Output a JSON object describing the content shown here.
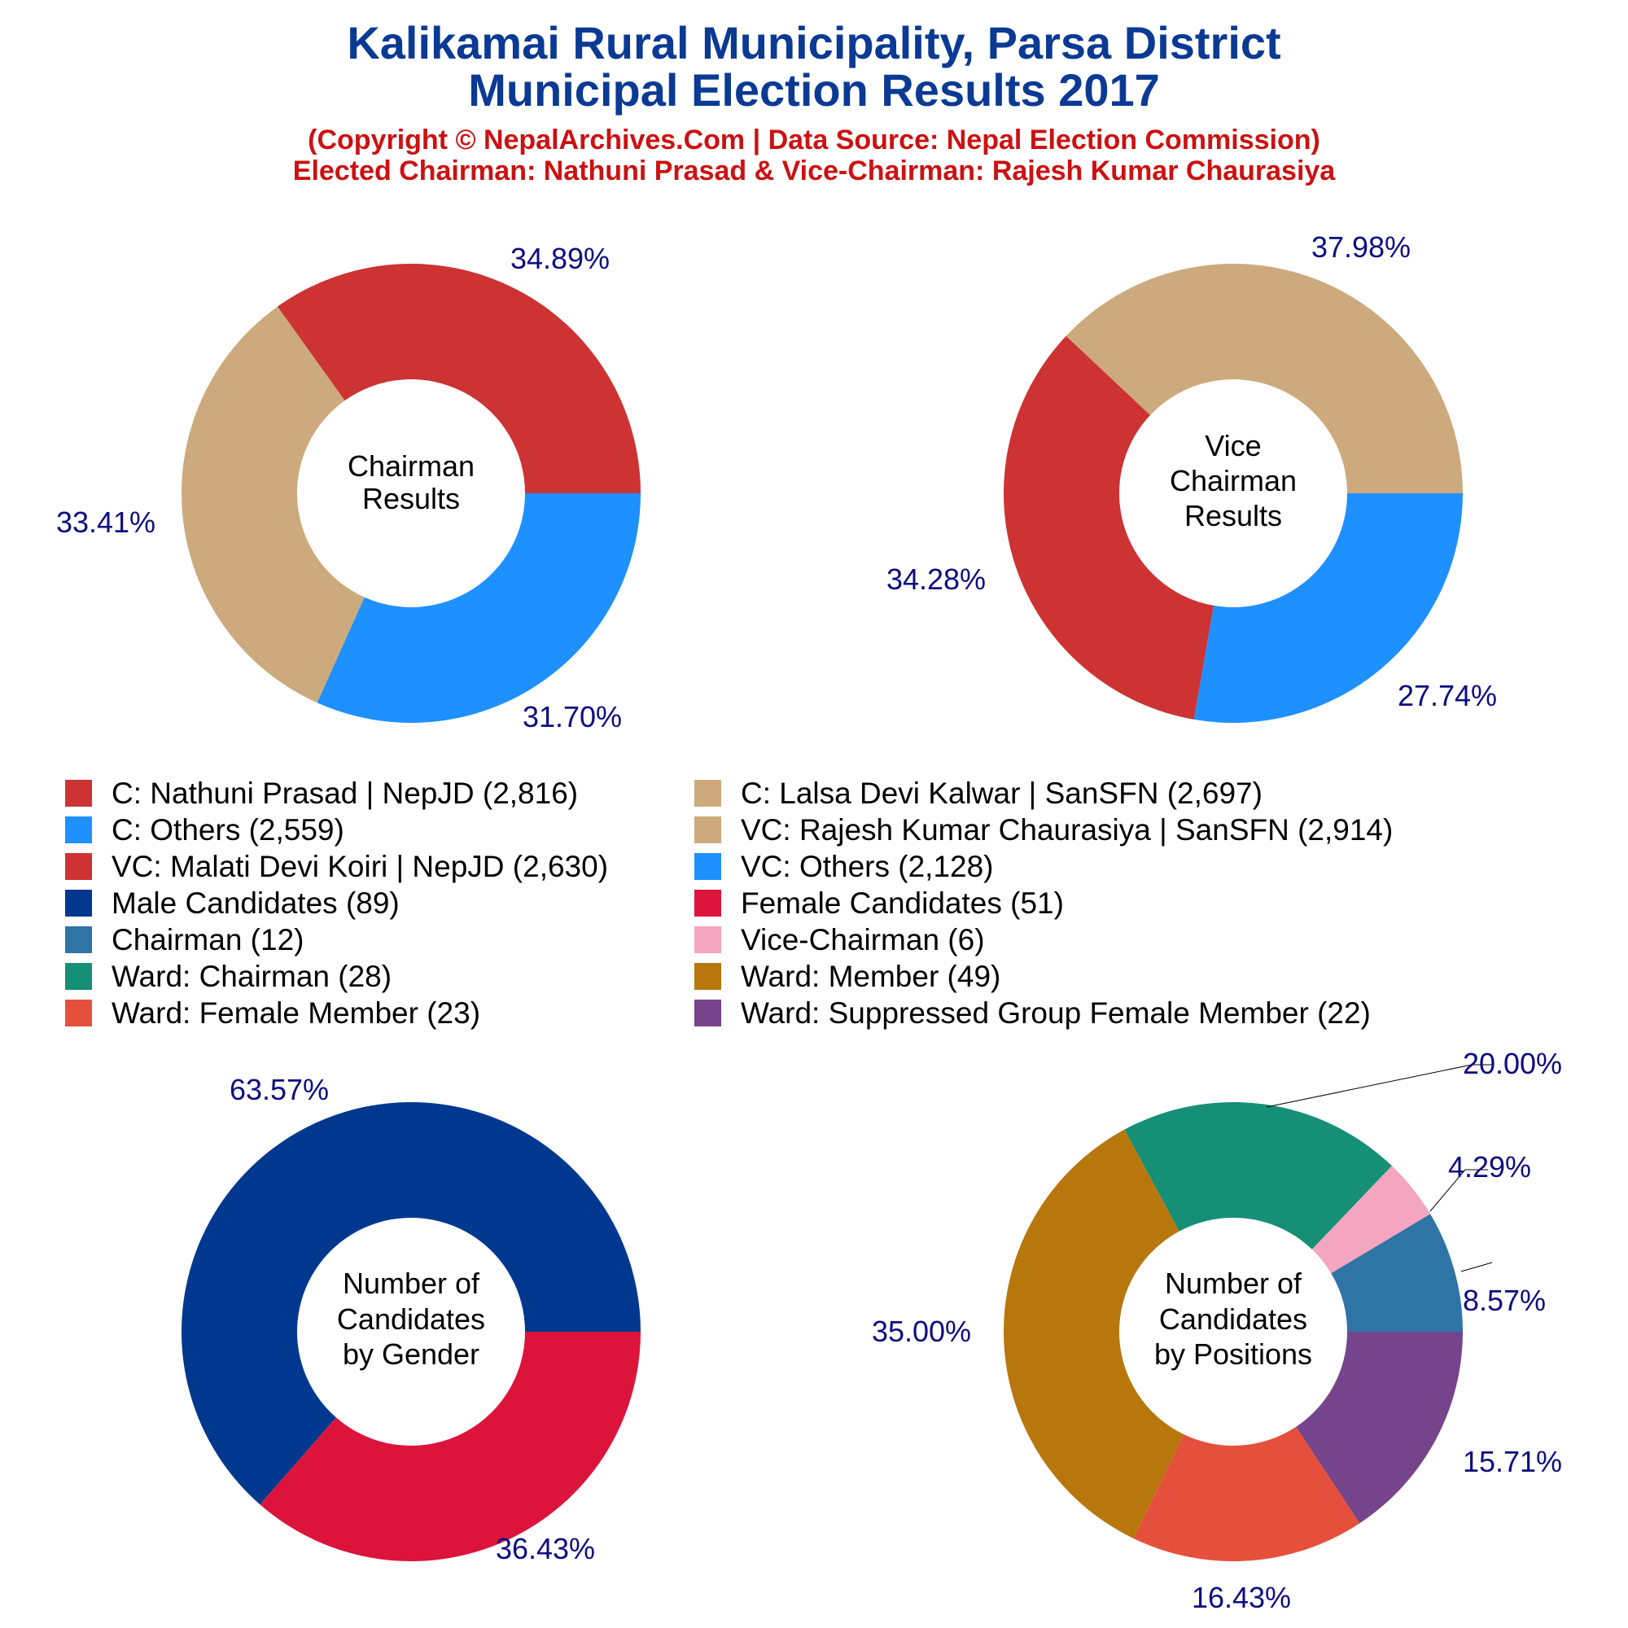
{
  "title_line1": "Kalikamai Rural Municipality, Parsa District",
  "title_line2": "Municipal Election Results 2017",
  "subtitle_line1": "(Copyright © NepalArchives.Com | Data Source: Nepal Election Commission)",
  "subtitle_line2": "Elected Chairman: Nathuni Prasad & Vice-Chairman: Rajesh Kumar Chaurasiya",
  "legend": [
    {
      "label": "C: Nathuni Prasad | NepJD (2,816)",
      "color": "#cd3333"
    },
    {
      "label": "C: Lalsa Devi Kalwar | SanSFN (2,697)",
      "color": "#cdaa7d"
    },
    {
      "label": "C: Others (2,559)",
      "color": "#1e90ff"
    },
    {
      "label": "VC: Rajesh Kumar Chaurasiya | SanSFN (2,914)",
      "color": "#cdaa7d"
    },
    {
      "label": "VC: Malati Devi Koiri | NepJD (2,630)",
      "color": "#cd3333"
    },
    {
      "label": "VC: Others (2,128)",
      "color": "#1e90ff"
    },
    {
      "label": "Male Candidates (89)",
      "color": "#00388f"
    },
    {
      "label": "Female Candidates (51)",
      "color": "#dc143c"
    },
    {
      "label": "Chairman (12)",
      "color": "#2e75a6"
    },
    {
      "label": "Vice-Chairman (6)",
      "color": "#f4a6c0"
    },
    {
      "label": "Ward: Chairman (28)",
      "color": "#168f77"
    },
    {
      "label": "Ward: Member (49)",
      "color": "#b8770d"
    },
    {
      "label": "Ward: Female Member (23)",
      "color": "#e5503c"
    },
    {
      "label": "Ward: Suppressed Group Female Member (22)",
      "color": "#76448a"
    }
  ],
  "chart_data": [
    {
      "type": "pie",
      "center_label": [
        "Chairman",
        "Results"
      ],
      "slices": [
        {
          "name": "C: Nathuni Prasad | NepJD",
          "value": 2816,
          "pct_label": "34.89%",
          "color": "#cd3333"
        },
        {
          "name": "C: Lalsa Devi Kalwar | SanSFN",
          "value": 2697,
          "pct_label": "33.41%",
          "color": "#cdaa7d"
        },
        {
          "name": "C: Others",
          "value": 2559,
          "pct_label": "31.70%",
          "color": "#1e90ff"
        }
      ]
    },
    {
      "type": "pie",
      "center_label": [
        "Vice",
        "Chairman",
        "Results"
      ],
      "slices": [
        {
          "name": "VC: Rajesh Kumar Chaurasiya | SanSFN",
          "value": 2914,
          "pct_label": "37.98%",
          "color": "#cdaa7d"
        },
        {
          "name": "VC: Malati Devi Koiri | NepJD",
          "value": 2630,
          "pct_label": "34.28%",
          "color": "#cd3333"
        },
        {
          "name": "VC: Others",
          "value": 2128,
          "pct_label": "27.74%",
          "color": "#1e90ff"
        }
      ]
    },
    {
      "type": "pie",
      "center_label": [
        "Number of",
        "Candidates",
        "by Gender"
      ],
      "slices": [
        {
          "name": "Male Candidates",
          "value": 89,
          "pct_label": "63.57%",
          "color": "#00388f"
        },
        {
          "name": "Female Candidates",
          "value": 51,
          "pct_label": "36.43%",
          "color": "#dc143c"
        }
      ]
    },
    {
      "type": "pie",
      "center_label": [
        "Number of",
        "Candidates",
        "by Positions"
      ],
      "slices": [
        {
          "name": "Chairman",
          "value": 12,
          "pct_label": "8.57%",
          "color": "#2e75a6"
        },
        {
          "name": "Vice-Chairman",
          "value": 6,
          "pct_label": "4.29%",
          "color": "#f4a6c0"
        },
        {
          "name": "Ward: Chairman",
          "value": 28,
          "pct_label": "20.00%",
          "color": "#168f77"
        },
        {
          "name": "Ward: Member",
          "value": 49,
          "pct_label": "35.00%",
          "color": "#b8770d"
        },
        {
          "name": "Ward: Female Member",
          "value": 23,
          "pct_label": "16.43%",
          "color": "#e5503c"
        },
        {
          "name": "Ward: Suppressed Group Female Member",
          "value": 22,
          "pct_label": "15.71%",
          "color": "#76448a"
        }
      ]
    }
  ]
}
